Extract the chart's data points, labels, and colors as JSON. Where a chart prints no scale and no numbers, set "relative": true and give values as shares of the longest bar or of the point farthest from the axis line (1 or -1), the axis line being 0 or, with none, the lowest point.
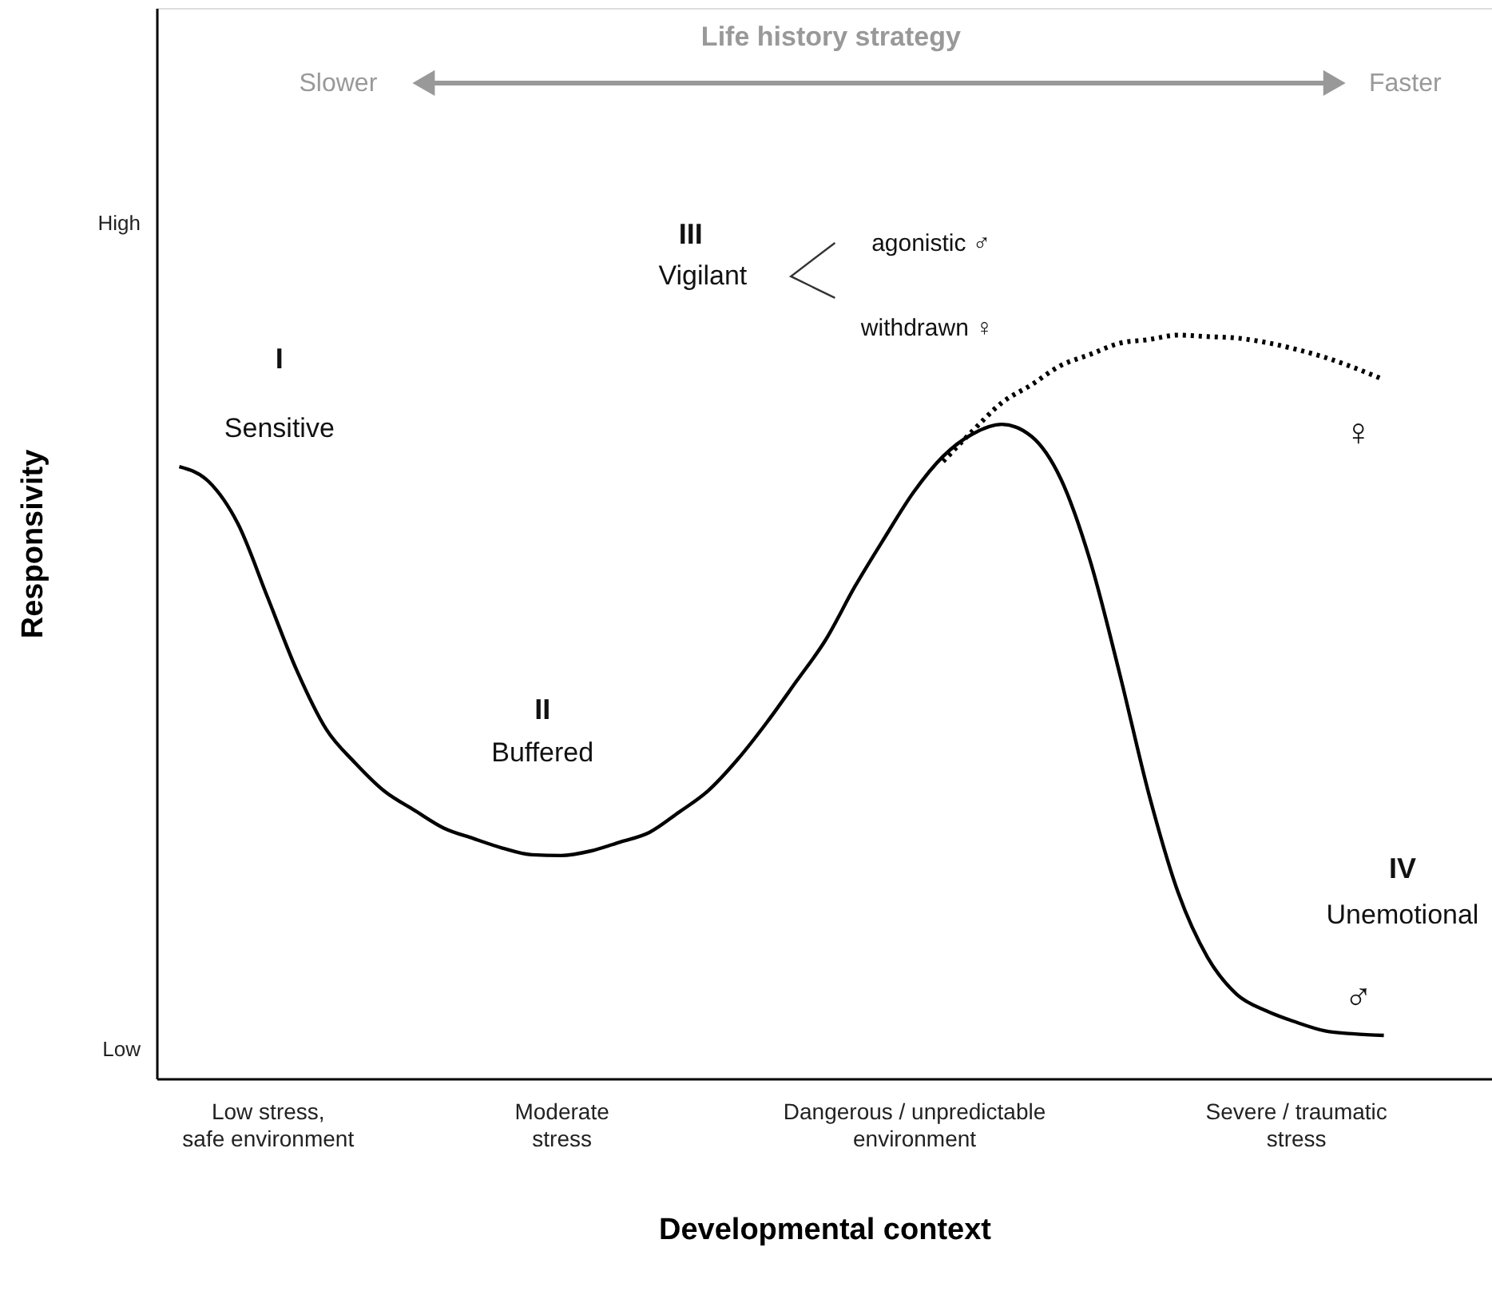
{
  "chart_data": {
    "type": "line",
    "title": "Life history strategy",
    "xlabel": "Developmental context",
    "ylabel": "Responsivity",
    "relative": true,
    "categories": [
      null,
      null,
      null,
      "Low stress,\nsafe environment",
      null,
      null,
      null,
      null,
      null,
      null,
      null,
      null,
      null,
      "Moderate\nstress",
      null,
      null,
      null,
      null,
      null,
      null,
      null,
      null,
      null,
      null,
      null,
      "Dangerous / unpredictable\nenvironment",
      null,
      null,
      null,
      null,
      null,
      null,
      null,
      null,
      null,
      null,
      null,
      null,
      "Severe / traumatic\nstress",
      null,
      null,
      null
    ],
    "grid": false,
    "marker": "none",
    "series": [
      {
        "color": "#000000",
        "line_style": "solid",
        "values": [
          0.823,
          0.803,
          0.746,
          0.648,
          0.549,
          0.47,
          0.424,
          0.386,
          0.361,
          0.337,
          0.323,
          0.31,
          0.301,
          0.3,
          0.306,
          0.318,
          0.331,
          0.358,
          0.387,
          0.429,
          0.479,
          0.534,
          0.59,
          0.662,
          0.727,
          0.789,
          0.837,
          0.867,
          0.88,
          0.864,
          0.807,
          0.697,
          0.546,
          0.383,
          0.25,
          0.163,
          0.113,
          0.091,
          0.076,
          0.064,
          0.06,
          0.058
        ]
      },
      {
        "color": "#000000",
        "line_style": "dotted",
        "values": [
          null,
          null,
          null,
          null,
          null,
          null,
          null,
          null,
          null,
          null,
          null,
          null,
          null,
          null,
          null,
          null,
          null,
          null,
          null,
          null,
          null,
          null,
          null,
          null,
          null,
          null,
          0.83,
          0.871,
          0.909,
          0.933,
          0.959,
          0.974,
          0.989,
          0.994,
          1.0,
          0.998,
          0.996,
          0.99,
          0.981,
          0.97,
          0.956,
          0.94
        ]
      }
    ],
    "annotations": [
      "I",
      "Sensitive",
      "II",
      "Buffered",
      "III",
      "Vigilant",
      "agonistic ♂",
      "withdrawn ♀",
      "IV",
      "Unemotional",
      "♀",
      "♂",
      "Slower",
      "Faster",
      "High",
      "Low"
    ]
  }
}
